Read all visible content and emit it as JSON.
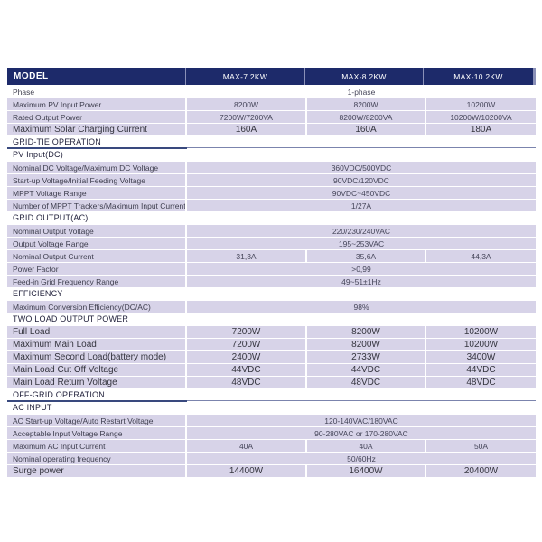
{
  "theme": {
    "header_bg": "#1d2a6a",
    "header_text": "#ffffff",
    "row_bg": "#d7d3e8",
    "sep": "#8a90b8",
    "rule_dark": "#39497e",
    "rule_light": "#7b84ad",
    "label_text": "#3e3e4e",
    "value_text": "#46465a",
    "section_text": "#23233d"
  },
  "table": {
    "header": {
      "model_label": "MODEL",
      "columns": [
        "MAX-7.2KW",
        "MAX-8.2KW",
        "MAX-10.2KW"
      ]
    },
    "rows": [
      {
        "kind": "row",
        "white": true,
        "label": "Phase",
        "merged": "1-phase"
      },
      {
        "kind": "row",
        "label": "Maximum PV Input Power",
        "values": [
          "8200W",
          "8200W",
          "10200W"
        ]
      },
      {
        "kind": "row",
        "label": "Rated Output Power",
        "values": [
          "7200W/7200VA",
          "8200W/8200VA",
          "10200W/10200VA"
        ]
      },
      {
        "kind": "row",
        "big": true,
        "label": "Maximum Solar Charging Current",
        "values": [
          "160A",
          "160A",
          "180A"
        ]
      },
      {
        "kind": "section",
        "rule": true,
        "label": "GRID-TIE OPERATION"
      },
      {
        "kind": "section",
        "label": "PV Input(DC)"
      },
      {
        "kind": "row",
        "label": "Nominal DC Voltage/Maximum DC Voltage",
        "merged": "360VDC/500VDC"
      },
      {
        "kind": "row",
        "label": "Start-up Voltage/Initial Feeding Voltage",
        "merged": "90VDC/120VDC"
      },
      {
        "kind": "row",
        "label": "MPPT Voltage Range",
        "merged": "90VDC~450VDC"
      },
      {
        "kind": "row",
        "label": "Number of MPPT Trackers/Maximum Input Current",
        "merged": "1/27A"
      },
      {
        "kind": "section",
        "label": "GRID OUTPUT(AC)"
      },
      {
        "kind": "row",
        "label": "Nominal Output Voltage",
        "merged": "220/230/240VAC"
      },
      {
        "kind": "row",
        "label": "Output Voltage Range",
        "merged": "195~253VAC"
      },
      {
        "kind": "row",
        "label": "Nominal Output Current",
        "values": [
          "31,3A",
          "35,6A",
          "44,3A"
        ]
      },
      {
        "kind": "row",
        "label": "Power Factor",
        "merged": ">0,99"
      },
      {
        "kind": "row",
        "label": "Feed-in Grid Frequency Range",
        "merged": "49~51±1Hz"
      },
      {
        "kind": "section",
        "label": "EFFICIENCY"
      },
      {
        "kind": "row",
        "label": "Maximum Conversion Efficiency(DC/AC)",
        "merged": "98%"
      },
      {
        "kind": "section",
        "label": "TWO LOAD OUTPUT POWER"
      },
      {
        "kind": "row",
        "big": true,
        "label": "Full Load",
        "values": [
          "7200W",
          "8200W",
          "10200W"
        ]
      },
      {
        "kind": "row",
        "big": true,
        "label": "Maximum Main Load",
        "values": [
          "7200W",
          "8200W",
          "10200W"
        ]
      },
      {
        "kind": "row",
        "big": true,
        "label": "Maximum Second Load(battery mode)",
        "values": [
          "2400W",
          "2733W",
          "3400W"
        ]
      },
      {
        "kind": "row",
        "big": true,
        "label": "Main Load Cut Off Voltage",
        "values": [
          "44VDC",
          "44VDC",
          "44VDC"
        ]
      },
      {
        "kind": "row",
        "big": true,
        "label": "Main Load Return Voltage",
        "values": [
          "48VDC",
          "48VDC",
          "48VDC"
        ]
      },
      {
        "kind": "section",
        "rule": true,
        "label": "OFF-GRID OPERATION"
      },
      {
        "kind": "section",
        "label": "AC INPUT"
      },
      {
        "kind": "row",
        "label": "AC Start-up Voltage/Auto Restart Voltage",
        "merged": "120-140VAC/180VAC"
      },
      {
        "kind": "row",
        "label": "Acceptable Input Voltage Range",
        "merged": "90-280VAC or 170-280VAC"
      },
      {
        "kind": "row",
        "label": "Maximum AC Input Current",
        "values": [
          "40A",
          "40A",
          "50A"
        ]
      },
      {
        "kind": "row",
        "label": "Nominal operating frequency",
        "merged": "50/60Hz"
      },
      {
        "kind": "row",
        "big": true,
        "label": "Surge power",
        "values": [
          "14400W",
          "16400W",
          "20400W"
        ]
      }
    ]
  }
}
